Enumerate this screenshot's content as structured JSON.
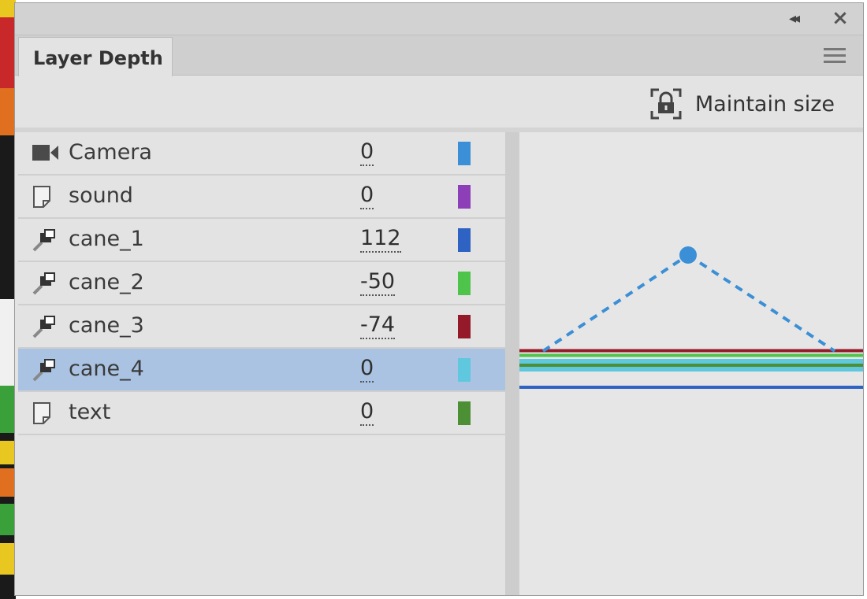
{
  "panel": {
    "tab_title": "Layer Depth",
    "maintain_size_label": "Maintain size"
  },
  "icons": {
    "collapse": "double-chevron-left-icon",
    "close": "close-icon",
    "menu": "hamburger-menu-icon",
    "lock": "lock-icon"
  },
  "layers": [
    {
      "name": "Camera",
      "depth": "0",
      "icon": "camera-icon",
      "color": "#3b8fd6",
      "selected": false
    },
    {
      "name": "sound",
      "depth": "0",
      "icon": "layer-folder-icon",
      "color": "#8d3fb8",
      "selected": false
    },
    {
      "name": "cane_1",
      "depth": "112",
      "icon": "layer-pin-icon",
      "color": "#2e63c4",
      "selected": false
    },
    {
      "name": "cane_2",
      "depth": "-50",
      "icon": "layer-pin-icon",
      "color": "#4fc44a",
      "selected": false
    },
    {
      "name": "cane_3",
      "depth": "-74",
      "icon": "layer-pin-icon",
      "color": "#941a2a",
      "selected": false
    },
    {
      "name": "cane_4",
      "depth": "0",
      "icon": "layer-pin-icon",
      "color": "#5fc8de",
      "selected": true
    },
    {
      "name": "text",
      "depth": "0",
      "icon": "layer-folder-icon",
      "color": "#4d8f34",
      "selected": false
    }
  ],
  "camera_color": "#3b8fd6"
}
